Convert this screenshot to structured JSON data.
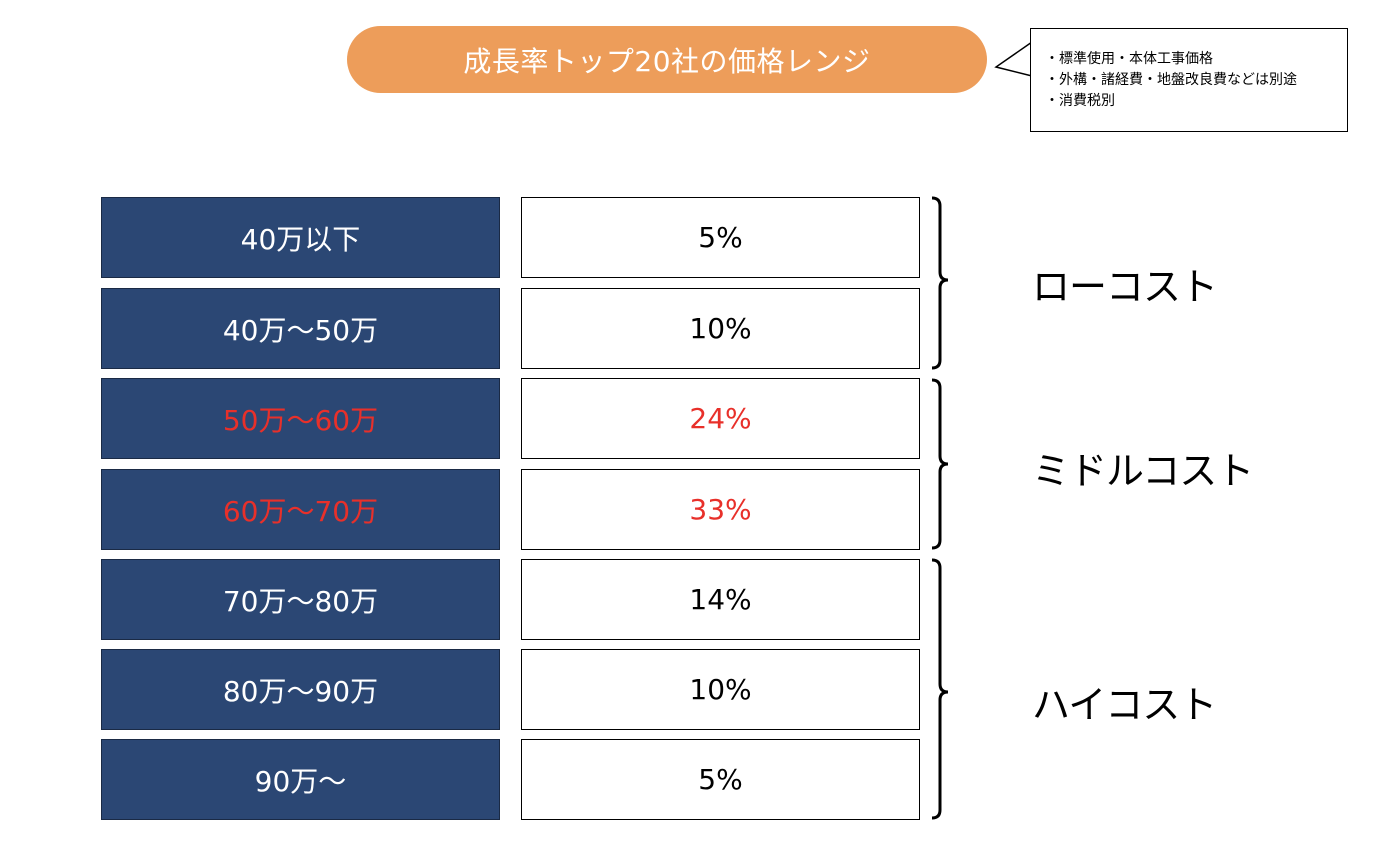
{
  "title": "成長率トップ20社の価格レンジ",
  "notes": [
    "・標準使用・本体工事価格",
    "・外構・諸経費・地盤改良費などは別途",
    "・消費税別"
  ],
  "rows": [
    {
      "range": "40万以下",
      "share": "5%"
    },
    {
      "range": "40万～50万",
      "share": "10%"
    },
    {
      "range": "50万～60万",
      "share": "24%"
    },
    {
      "range": "60万～70万",
      "share": "33%"
    },
    {
      "range": "70万～80万",
      "share": "14%"
    },
    {
      "range": "80万～90万",
      "share": "10%"
    },
    {
      "range": "90万～",
      "share": "5%"
    }
  ],
  "groups": [
    {
      "label": "ローコスト"
    },
    {
      "label": "ミドルコスト"
    },
    {
      "label": "ハイコスト"
    }
  ],
  "colors": {
    "title_bg": "#ED9D5A",
    "range_bg": "#2B4774",
    "highlight_text": "#E8302A"
  }
}
